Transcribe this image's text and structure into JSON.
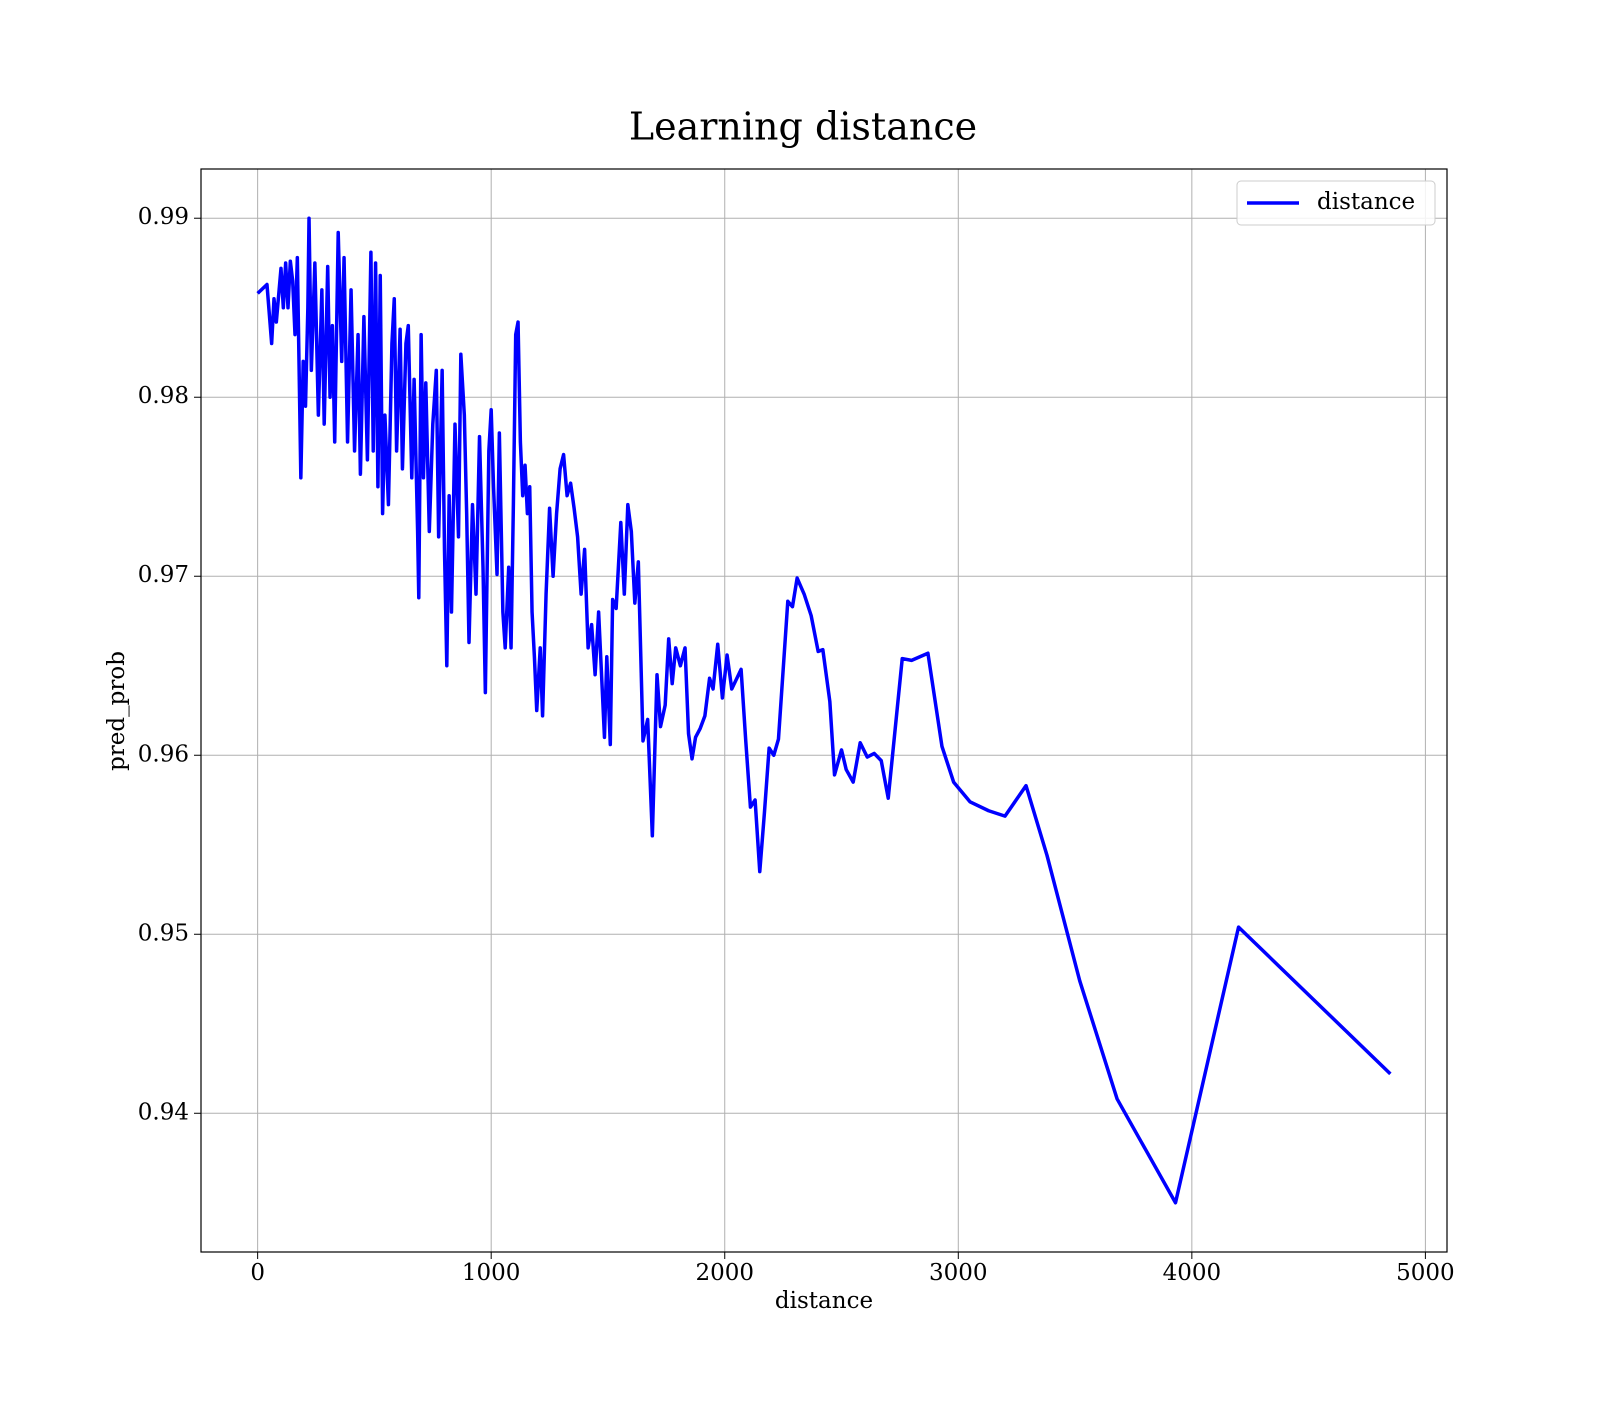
{
  "chart_data": {
    "type": "line",
    "title": "Learning distance",
    "xlabel": "distance",
    "ylabel": "pred_prob",
    "x": [
      0,
      40,
      60,
      70,
      80,
      100,
      110,
      120,
      130,
      140,
      150,
      160,
      170,
      185,
      195,
      205,
      215,
      220,
      230,
      245,
      260,
      275,
      285,
      300,
      310,
      320,
      330,
      345,
      360,
      370,
      385,
      400,
      415,
      430,
      440,
      455,
      470,
      485,
      495,
      505,
      515,
      525,
      535,
      545,
      560,
      575,
      585,
      595,
      610,
      620,
      635,
      645,
      660,
      670,
      685,
      690,
      700,
      710,
      720,
      735,
      750,
      765,
      775,
      790,
      800,
      810,
      820,
      830,
      845,
      860,
      870,
      885,
      895,
      905,
      920,
      935,
      950,
      965,
      975,
      990,
      1000,
      1010,
      1025,
      1035,
      1050,
      1060,
      1075,
      1085,
      1095,
      1105,
      1115,
      1125,
      1135,
      1145,
      1155,
      1165,
      1175,
      1185,
      1195,
      1210,
      1220,
      1235,
      1250,
      1265,
      1280,
      1295,
      1310,
      1325,
      1340,
      1355,
      1370,
      1385,
      1400,
      1415,
      1430,
      1445,
      1460,
      1475,
      1485,
      1495,
      1510,
      1520,
      1535,
      1555,
      1570,
      1585,
      1600,
      1615,
      1630,
      1650,
      1670,
      1690,
      1710,
      1725,
      1745,
      1760,
      1775,
      1790,
      1810,
      1830,
      1845,
      1860,
      1875,
      1895,
      1915,
      1935,
      1950,
      1970,
      1990,
      2010,
      2030,
      2070,
      2090,
      2110,
      2130,
      2150,
      2170,
      2190,
      2210,
      2230,
      2270,
      2290,
      2310,
      2340,
      2370,
      2400,
      2420,
      2450,
      2470,
      2500,
      2520,
      2550,
      2580,
      2610,
      2640,
      2670,
      2700,
      2760,
      2800,
      2870,
      2930,
      2980,
      3050,
      3130,
      3200,
      3290,
      3380,
      3520,
      3680,
      3930,
      4200,
      4850
    ],
    "series": [
      {
        "name": "distance",
        "color": "#0000ff",
        "values": [
          0.9858,
          0.9863,
          0.983,
          0.9855,
          0.9842,
          0.9872,
          0.985,
          0.9875,
          0.985,
          0.9876,
          0.9865,
          0.9835,
          0.9878,
          0.9755,
          0.982,
          0.9795,
          0.985,
          0.99,
          0.9815,
          0.9875,
          0.979,
          0.986,
          0.9785,
          0.9873,
          0.98,
          0.984,
          0.9775,
          0.9892,
          0.982,
          0.9878,
          0.9775,
          0.986,
          0.977,
          0.9835,
          0.9757,
          0.9845,
          0.9765,
          0.9881,
          0.977,
          0.9875,
          0.975,
          0.9868,
          0.9735,
          0.979,
          0.974,
          0.983,
          0.9855,
          0.977,
          0.9838,
          0.976,
          0.983,
          0.984,
          0.9755,
          0.981,
          0.9725,
          0.9688,
          0.9835,
          0.9755,
          0.9808,
          0.9725,
          0.9785,
          0.9815,
          0.9722,
          0.9815,
          0.9715,
          0.965,
          0.9745,
          0.968,
          0.9785,
          0.9722,
          0.9824,
          0.979,
          0.9735,
          0.9663,
          0.974,
          0.969,
          0.9778,
          0.9705,
          0.9635,
          0.977,
          0.9793,
          0.975,
          0.9701,
          0.978,
          0.968,
          0.966,
          0.9705,
          0.966,
          0.974,
          0.9835,
          0.9842,
          0.9775,
          0.9745,
          0.9762,
          0.9735,
          0.975,
          0.968,
          0.9655,
          0.9625,
          0.966,
          0.9622,
          0.969,
          0.9738,
          0.97,
          0.9735,
          0.976,
          0.9768,
          0.9745,
          0.9752,
          0.9738,
          0.9722,
          0.969,
          0.9715,
          0.966,
          0.9673,
          0.9645,
          0.968,
          0.9638,
          0.961,
          0.9655,
          0.9606,
          0.9687,
          0.9682,
          0.973,
          0.969,
          0.974,
          0.9725,
          0.9685,
          0.9708,
          0.9608,
          0.962,
          0.9555,
          0.9645,
          0.9616,
          0.9628,
          0.9665,
          0.964,
          0.966,
          0.965,
          0.966,
          0.9612,
          0.9598,
          0.961,
          0.9615,
          0.9622,
          0.9643,
          0.9637,
          0.9662,
          0.9632,
          0.9656,
          0.9637,
          0.9648,
          0.9608,
          0.9571,
          0.9575,
          0.9535,
          0.9568,
          0.9604,
          0.96,
          0.9609,
          0.9686,
          0.9683,
          0.9699,
          0.969,
          0.9678,
          0.9658,
          0.9659,
          0.963,
          0.9589,
          0.9603,
          0.9592,
          0.9585,
          0.9607,
          0.9599,
          0.9601,
          0.9597,
          0.9576,
          0.9654,
          0.9653,
          0.9657,
          0.9605,
          0.9585,
          0.9574,
          0.9569,
          0.9566,
          0.9583,
          0.9544,
          0.9474,
          0.9408,
          0.935,
          0.9504,
          0.9422
        ]
      }
    ],
    "xlim": [
      -242.5,
      5092.5
    ],
    "xticks": [
      0,
      1000,
      2000,
      3000,
      4000,
      5000
    ],
    "ylim": [
      0.93225,
      0.99275
    ],
    "yticks": [
      0.94,
      0.95,
      0.96,
      0.97,
      0.98,
      0.99
    ],
    "grid": true,
    "legend": "upper right"
  }
}
